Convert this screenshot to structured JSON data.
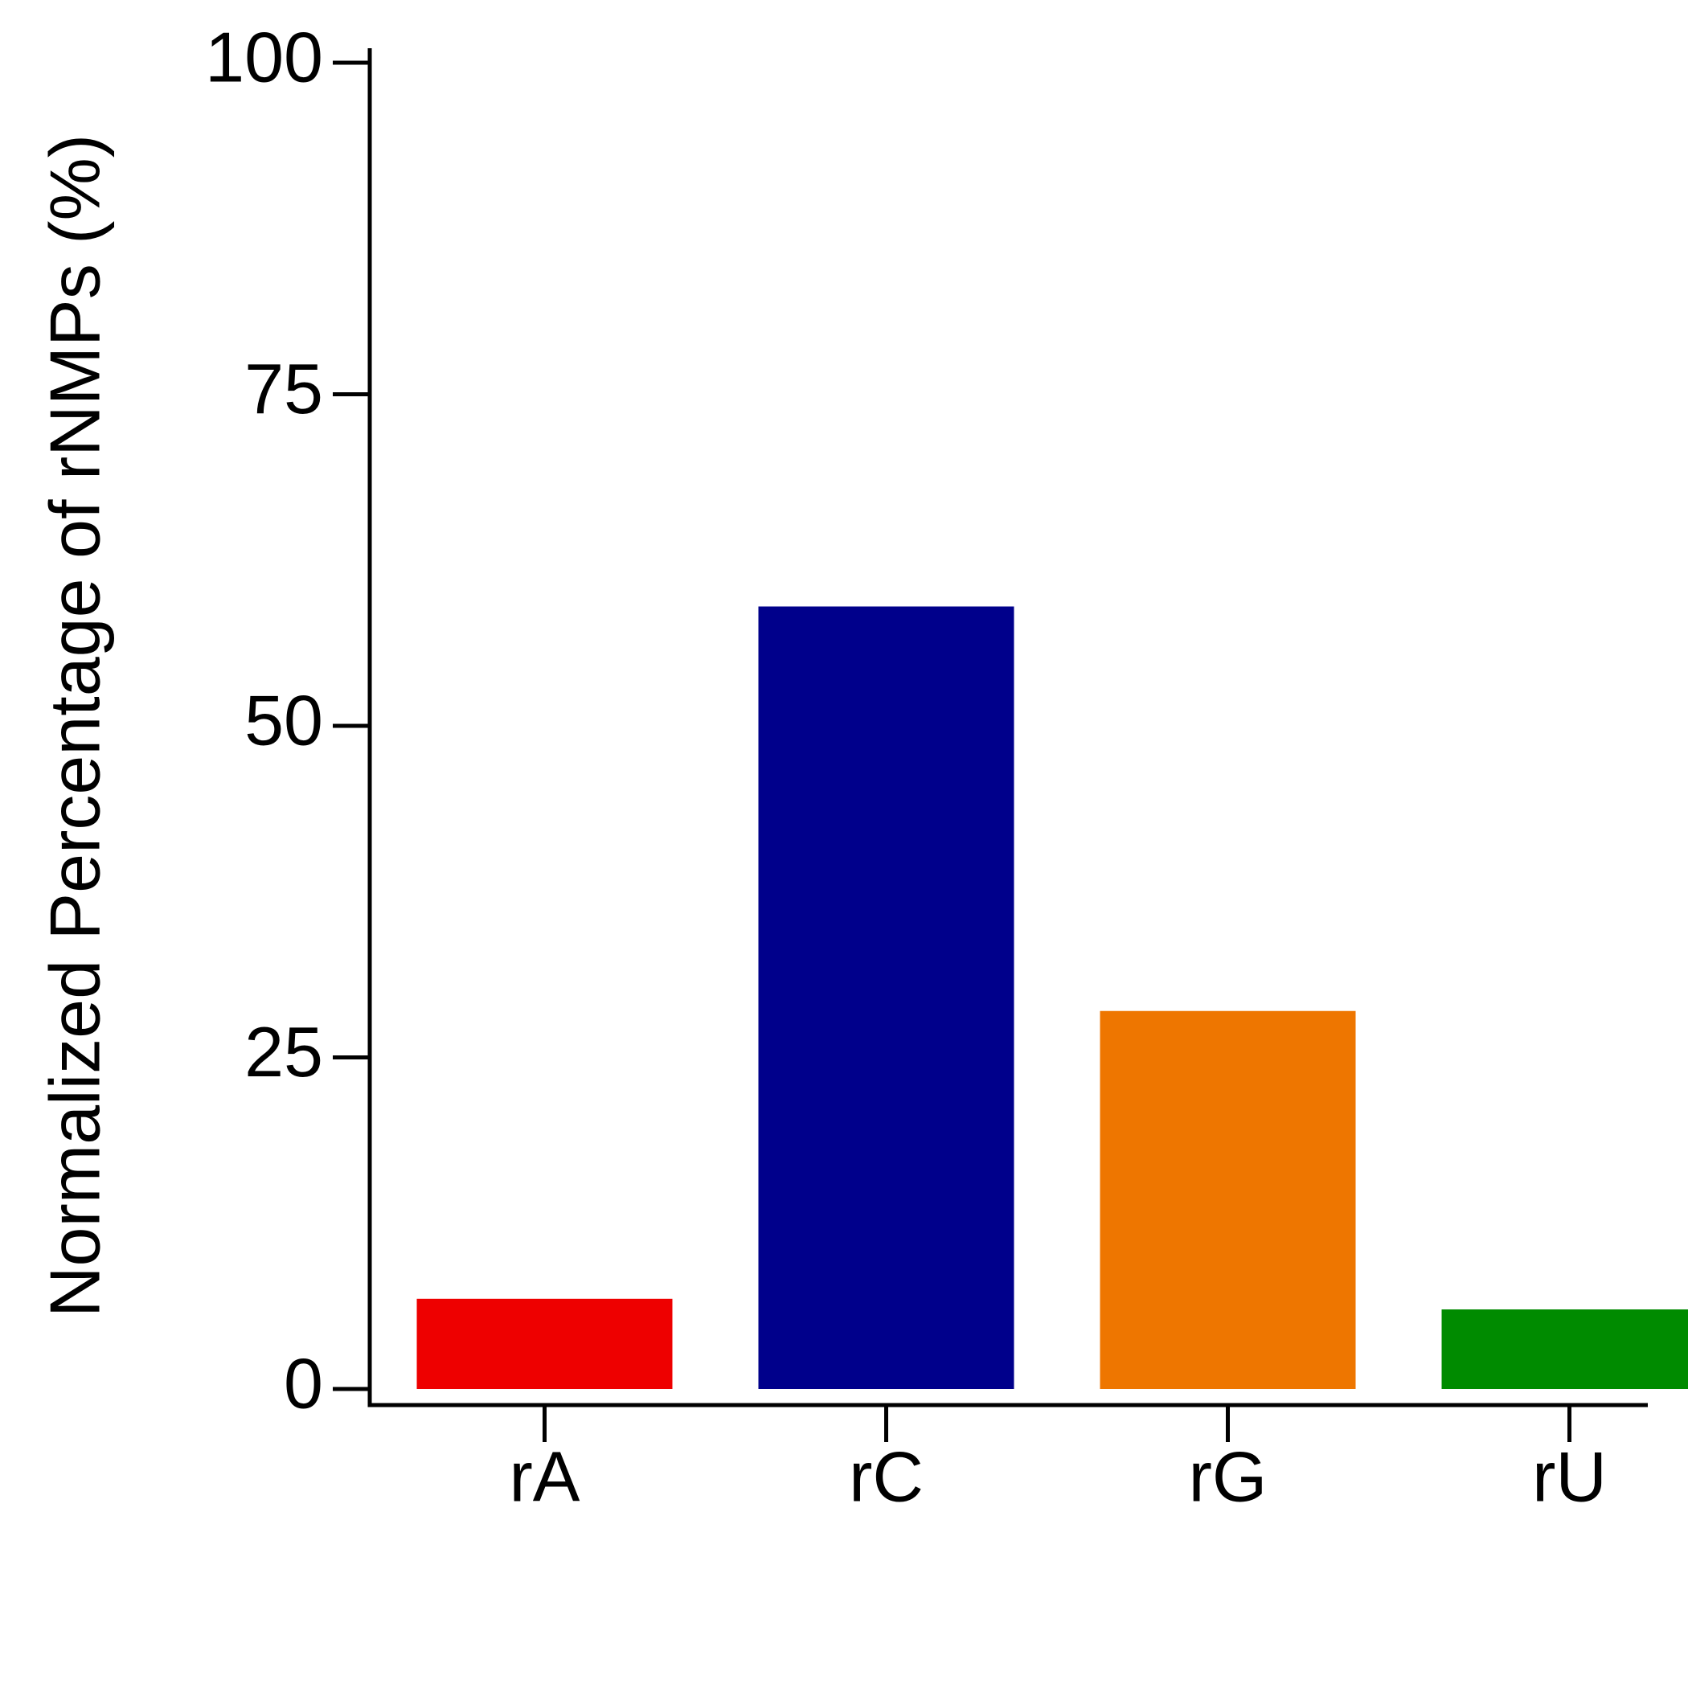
{
  "chart_data": {
    "type": "bar",
    "title": "",
    "xlabel": "",
    "ylabel": "Normalized Percentage of rNMPs (%)",
    "categories": [
      "rA",
      "rC",
      "rG",
      "rU"
    ],
    "values": [
      6.8,
      59.0,
      28.5,
      6.0
    ],
    "colors": [
      "#ee0000",
      "#00008b",
      "#ee7600",
      "#008b00"
    ],
    "ylim": [
      0,
      100
    ],
    "yticks": [
      0,
      25,
      50,
      75,
      100
    ],
    "ytick_labels": [
      "0",
      "25",
      "50",
      "75",
      "100"
    ],
    "grid": false,
    "legend": "none"
  }
}
